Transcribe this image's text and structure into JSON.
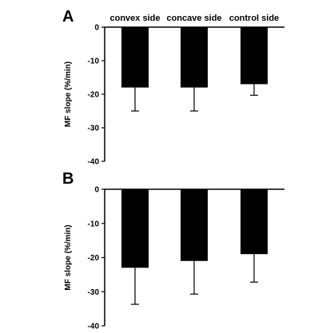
{
  "chart_data": [
    {
      "type": "bar",
      "panel_label": "A",
      "categories": [
        "convex side",
        "concave side",
        "control side"
      ],
      "values": [
        -18,
        -18,
        -17
      ],
      "errors": [
        7,
        7,
        3.3
      ],
      "ylabel": "MF slope (%/min)",
      "ylim": [
        -40,
        0
      ],
      "yticks": [
        0,
        -10,
        -20,
        -30,
        -40
      ],
      "ytick_labels": [
        "0",
        "-10",
        "-20",
        "-30",
        "-40"
      ],
      "category_labels_position": "top",
      "bar_color": "#000000",
      "grid": false
    },
    {
      "type": "bar",
      "panel_label": "B",
      "categories": [
        "convex side",
        "concave side",
        "control side"
      ],
      "values": [
        -23,
        -21,
        -19
      ],
      "errors": [
        10.7,
        9.7,
        8.2
      ],
      "ylabel": "MF slope (%/min)",
      "ylim": [
        -40,
        0
      ],
      "yticks": [
        0,
        -10,
        -20,
        -30,
        -40
      ],
      "ytick_labels": [
        "0",
        "-10",
        "-20",
        "-30",
        "-40"
      ],
      "category_labels_position": "none",
      "bar_color": "#000000",
      "grid": false
    }
  ]
}
